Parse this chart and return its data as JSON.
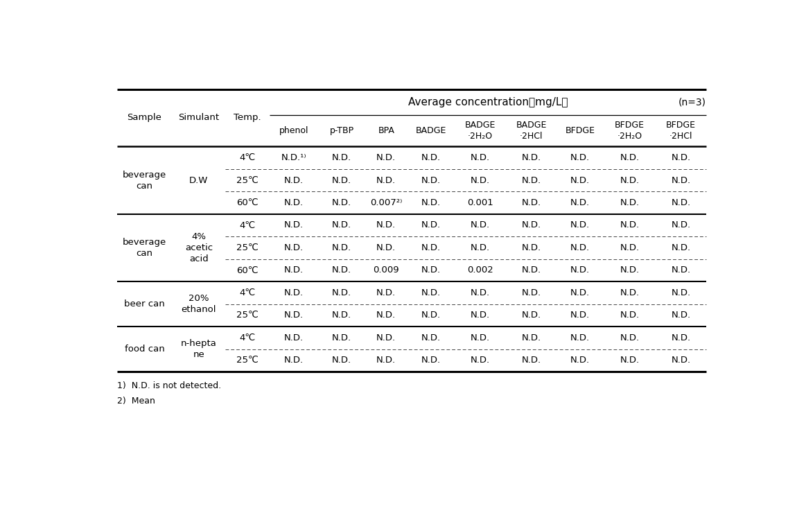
{
  "title": "Average concentration（mg/L）",
  "n_label": "(n=3)",
  "sample_header": "Sample",
  "simulant_header": "Simulant",
  "temp_header": "Temp.",
  "col_labels": [
    "phenol",
    "p-TBP",
    "BPA",
    "BADGE",
    "BADGE\n·2H₂O",
    "BADGE\n·2HCl",
    "BFDGE",
    "BFDGE\n·2H₂O",
    "BFDGE\n·2HCl"
  ],
  "sample_groups": [
    {
      "sample": "beverage\ncan",
      "simulant": "D.W",
      "rows": [
        {
          "temp": "4℃",
          "values": [
            "N.D.¹⁾",
            "N.D.",
            "N.D.",
            "N.D.",
            "N.D.",
            "N.D.",
            "N.D.",
            "N.D.",
            "N.D."
          ]
        },
        {
          "temp": "25℃",
          "values": [
            "N.D.",
            "N.D.",
            "N.D.",
            "N.D.",
            "N.D.",
            "N.D.",
            "N.D.",
            "N.D.",
            "N.D."
          ]
        },
        {
          "temp": "60℃",
          "values": [
            "N.D.",
            "N.D.",
            "0.007²⁾",
            "N.D.",
            "0.001",
            "N.D.",
            "N.D.",
            "N.D.",
            "N.D."
          ]
        }
      ]
    },
    {
      "sample": "beverage\ncan",
      "simulant": "4%\nacetic\nacid",
      "rows": [
        {
          "temp": "4℃",
          "values": [
            "N.D.",
            "N.D.",
            "N.D.",
            "N.D.",
            "N.D.",
            "N.D.",
            "N.D.",
            "N.D.",
            "N.D."
          ]
        },
        {
          "temp": "25℃",
          "values": [
            "N.D.",
            "N.D.",
            "N.D.",
            "N.D.",
            "N.D.",
            "N.D.",
            "N.D.",
            "N.D.",
            "N.D."
          ]
        },
        {
          "temp": "60℃",
          "values": [
            "N.D.",
            "N.D.",
            "0.009",
            "N.D.",
            "0.002",
            "N.D.",
            "N.D.",
            "N.D.",
            "N.D."
          ]
        }
      ]
    },
    {
      "sample": "beer can",
      "simulant": "20%\nethanol",
      "rows": [
        {
          "temp": "4℃",
          "values": [
            "N.D.",
            "N.D.",
            "N.D.",
            "N.D.",
            "N.D.",
            "N.D.",
            "N.D.",
            "N.D.",
            "N.D."
          ]
        },
        {
          "temp": "25℃",
          "values": [
            "N.D.",
            "N.D.",
            "N.D.",
            "N.D.",
            "N.D.",
            "N.D.",
            "N.D.",
            "N.D.",
            "N.D."
          ]
        }
      ]
    },
    {
      "sample": "food can",
      "simulant": "n-hepta\nne",
      "rows": [
        {
          "temp": "4℃",
          "values": [
            "N.D.",
            "N.D.",
            "N.D.",
            "N.D.",
            "N.D.",
            "N.D.",
            "N.D.",
            "N.D.",
            "N.D."
          ]
        },
        {
          "temp": "25℃",
          "values": [
            "N.D.",
            "N.D.",
            "N.D.",
            "N.D.",
            "N.D.",
            "N.D.",
            "N.D.",
            "N.D.",
            "N.D."
          ]
        }
      ]
    }
  ],
  "footnotes": [
    "1)  N.D. is not detected.",
    "2)  Mean"
  ],
  "bg_color": "#ffffff",
  "text_color": "#000000",
  "font_size": 9.5,
  "header_font_size": 9.5
}
